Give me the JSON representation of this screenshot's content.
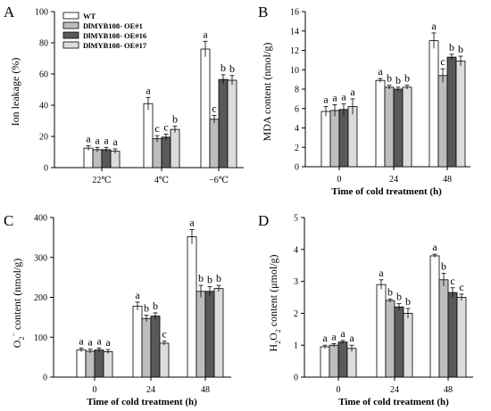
{
  "figure": {
    "colors": {
      "WT": "#ffffff",
      "OE1": "#bdbdbd",
      "OE16": "#595959",
      "OE17": "#dcdcdc",
      "axis": "#000000"
    }
  },
  "chart_data": [
    {
      "panel": "A",
      "type": "bar",
      "ylabel": "Ion leakage (%)",
      "xlabel": "",
      "categories": [
        "22℃",
        "4℃",
        "−6℃"
      ],
      "ylim": [
        0,
        100
      ],
      "yticks": [
        0,
        20,
        40,
        60,
        80,
        100
      ],
      "legend_position": "top-left",
      "series": [
        {
          "name": "WT",
          "values": [
            12.5,
            41,
            76
          ],
          "errors": [
            1.5,
            4,
            5
          ],
          "letters": [
            "a",
            "a",
            "a"
          ]
        },
        {
          "name": "DlMYB108- OE#1",
          "values": [
            11.5,
            18.5,
            31
          ],
          "errors": [
            1.5,
            2,
            2.5
          ],
          "letters": [
            "a",
            "c",
            "c"
          ]
        },
        {
          "name": "DlMYB108- OE#16",
          "values": [
            11.5,
            19.5,
            56.5
          ],
          "errors": [
            1.5,
            2,
            3
          ],
          "letters": [
            "a",
            "c",
            "b"
          ]
        },
        {
          "name": "DlMYB108- OE#17",
          "values": [
            10.5,
            24.5,
            56
          ],
          "errors": [
            1.5,
            2,
            3
          ],
          "letters": [
            "a",
            "b",
            "b"
          ]
        }
      ]
    },
    {
      "panel": "B",
      "type": "bar",
      "ylabel": "MDA content (nmol/g)",
      "xlabel": "Time of cold treatment (h)",
      "categories": [
        "0",
        "24",
        "48"
      ],
      "ylim": [
        0,
        16
      ],
      "yticks": [
        0,
        2,
        4,
        6,
        8,
        10,
        12,
        14,
        16
      ],
      "series": [
        {
          "name": "WT",
          "values": [
            5.7,
            8.9,
            13.0
          ],
          "errors": [
            0.5,
            0.2,
            0.8
          ],
          "letters": [
            "a",
            "a",
            "a"
          ]
        },
        {
          "name": "DlMYB108- OE#1",
          "values": [
            5.8,
            8.2,
            9.4
          ],
          "errors": [
            0.6,
            0.2,
            0.7
          ],
          "letters": [
            "a",
            "b",
            "c"
          ]
        },
        {
          "name": "DlMYB108- OE#16",
          "values": [
            5.9,
            8.0,
            11.3
          ],
          "errors": [
            0.6,
            0.2,
            0.3
          ],
          "letters": [
            "a",
            "b",
            "b"
          ]
        },
        {
          "name": "DlMYB108- OE#17",
          "values": [
            6.2,
            8.2,
            10.9
          ],
          "errors": [
            0.8,
            0.2,
            0.5
          ],
          "letters": [
            "a",
            "b",
            "b"
          ]
        }
      ]
    },
    {
      "panel": "C",
      "type": "bar",
      "ylabel": "O2− content (nmol/g)",
      "xlabel": "Time of cold treatment (h)",
      "categories": [
        "0",
        "24",
        "48"
      ],
      "ylim": [
        0,
        400
      ],
      "yticks": [
        0,
        100,
        200,
        300,
        400
      ],
      "series": [
        {
          "name": "WT",
          "values": [
            68,
            178,
            352
          ],
          "errors": [
            5,
            10,
            18
          ],
          "letters": [
            "a",
            "a",
            "a"
          ]
        },
        {
          "name": "DlMYB108- OE#1",
          "values": [
            65,
            147,
            215
          ],
          "errors": [
            5,
            8,
            15
          ],
          "letters": [
            "a",
            "b",
            "b"
          ]
        },
        {
          "name": "DlMYB108- OE#16",
          "values": [
            68,
            153,
            215
          ],
          "errors": [
            5,
            8,
            12
          ],
          "letters": [
            "a",
            "b",
            "b"
          ]
        },
        {
          "name": "DlMYB108- OE#17",
          "values": [
            64,
            85,
            222
          ],
          "errors": [
            5,
            5,
            8
          ],
          "letters": [
            "a",
            "c",
            "b"
          ]
        }
      ]
    },
    {
      "panel": "D",
      "type": "bar",
      "ylabel": "H2O2 content (μmol/g)",
      "xlabel": "Time of cold treatment (h)",
      "categories": [
        "0",
        "24",
        "48"
      ],
      "ylim": [
        0,
        5
      ],
      "yticks": [
        0,
        1,
        2,
        3,
        4,
        5
      ],
      "series": [
        {
          "name": "WT",
          "values": [
            0.95,
            2.9,
            3.8
          ],
          "errors": [
            0.05,
            0.15,
            0.05
          ],
          "letters": [
            "a",
            "a",
            "a"
          ]
        },
        {
          "name": "DlMYB108- OE#1",
          "values": [
            1.0,
            2.4,
            3.05
          ],
          "errors": [
            0.05,
            0.05,
            0.2
          ],
          "letters": [
            "a",
            "b",
            "b"
          ]
        },
        {
          "name": "DlMYB108- OE#16",
          "values": [
            1.1,
            2.2,
            2.65
          ],
          "errors": [
            0.05,
            0.1,
            0.15
          ],
          "letters": [
            "a",
            "b",
            "c"
          ]
        },
        {
          "name": "DlMYB108- OE#17",
          "values": [
            0.9,
            2.0,
            2.5
          ],
          "errors": [
            0.1,
            0.15,
            0.1
          ],
          "letters": [
            "a",
            "b",
            "c"
          ]
        }
      ]
    }
  ]
}
